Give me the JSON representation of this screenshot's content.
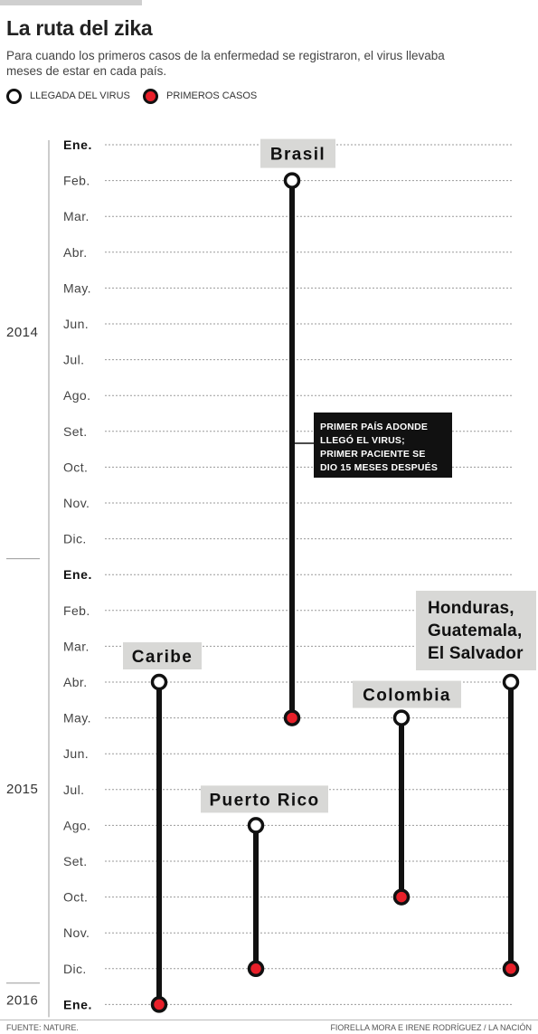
{
  "header": {
    "title": "La ruta del zika",
    "subtitle": "Para cuando los primeros casos de la enfermedad se registraron, el virus llevaba meses de estar en cada país."
  },
  "legend": {
    "arrival_label": "LLEGADA DEL VIRUS",
    "first_cases_label": "PRIMEROS CASOS"
  },
  "footer": {
    "source": "FUENTE: NATURE.",
    "credits": "FIORELLA MORA E IRENE RODRÍGUEZ / LA NACIÓN"
  },
  "colors": {
    "line": "#111111",
    "first_cases": "#e8202a",
    "label_bg": "#d8d8d6",
    "annotation_bg": "#111111"
  },
  "chart_data": {
    "type": "timeline",
    "months": [
      "Ene.",
      "Feb.",
      "Mar.",
      "Abr.",
      "May.",
      "Jun.",
      "Jul.",
      "Ago.",
      "Set.",
      "Oct.",
      "Nov.",
      "Dic.",
      "Ene.",
      "Feb.",
      "Mar.",
      "Abr.",
      "May.",
      "Jun.",
      "Jul.",
      "Ago.",
      "Set.",
      "Oct.",
      "Nov.",
      "Dic.",
      "Ene."
    ],
    "bold_months": [
      0,
      12,
      24
    ],
    "years": [
      {
        "label": "2014",
        "start": 0,
        "end": 11
      },
      {
        "label": "2015",
        "start": 12,
        "end": 23
      },
      {
        "label": "2016",
        "start": 24,
        "end": 24
      }
    ],
    "series": [
      {
        "name": "Brasil",
        "arrival": "2014-02",
        "first_cases": "2015-05"
      },
      {
        "name": "Caribe",
        "arrival": "2015-04",
        "first_cases": "2016-01"
      },
      {
        "name": "Puerto Rico",
        "arrival": "2015-08",
        "first_cases": "2015-12"
      },
      {
        "name": "Colombia",
        "arrival": "2015-05",
        "first_cases": "2015-10"
      },
      {
        "name": "Honduras,\nGuatemala,\nEl Salvador",
        "arrival": "2015-04",
        "first_cases": "2015-12"
      }
    ],
    "annotations": [
      {
        "series": "Brasil",
        "lines": [
          "PRIMER PAÍS ADONDE",
          "LLEGÓ EL VIRUS;",
          "PRIMER PACIENTE SE",
          "DIO 15 MESES DESPUÉS"
        ]
      }
    ]
  }
}
